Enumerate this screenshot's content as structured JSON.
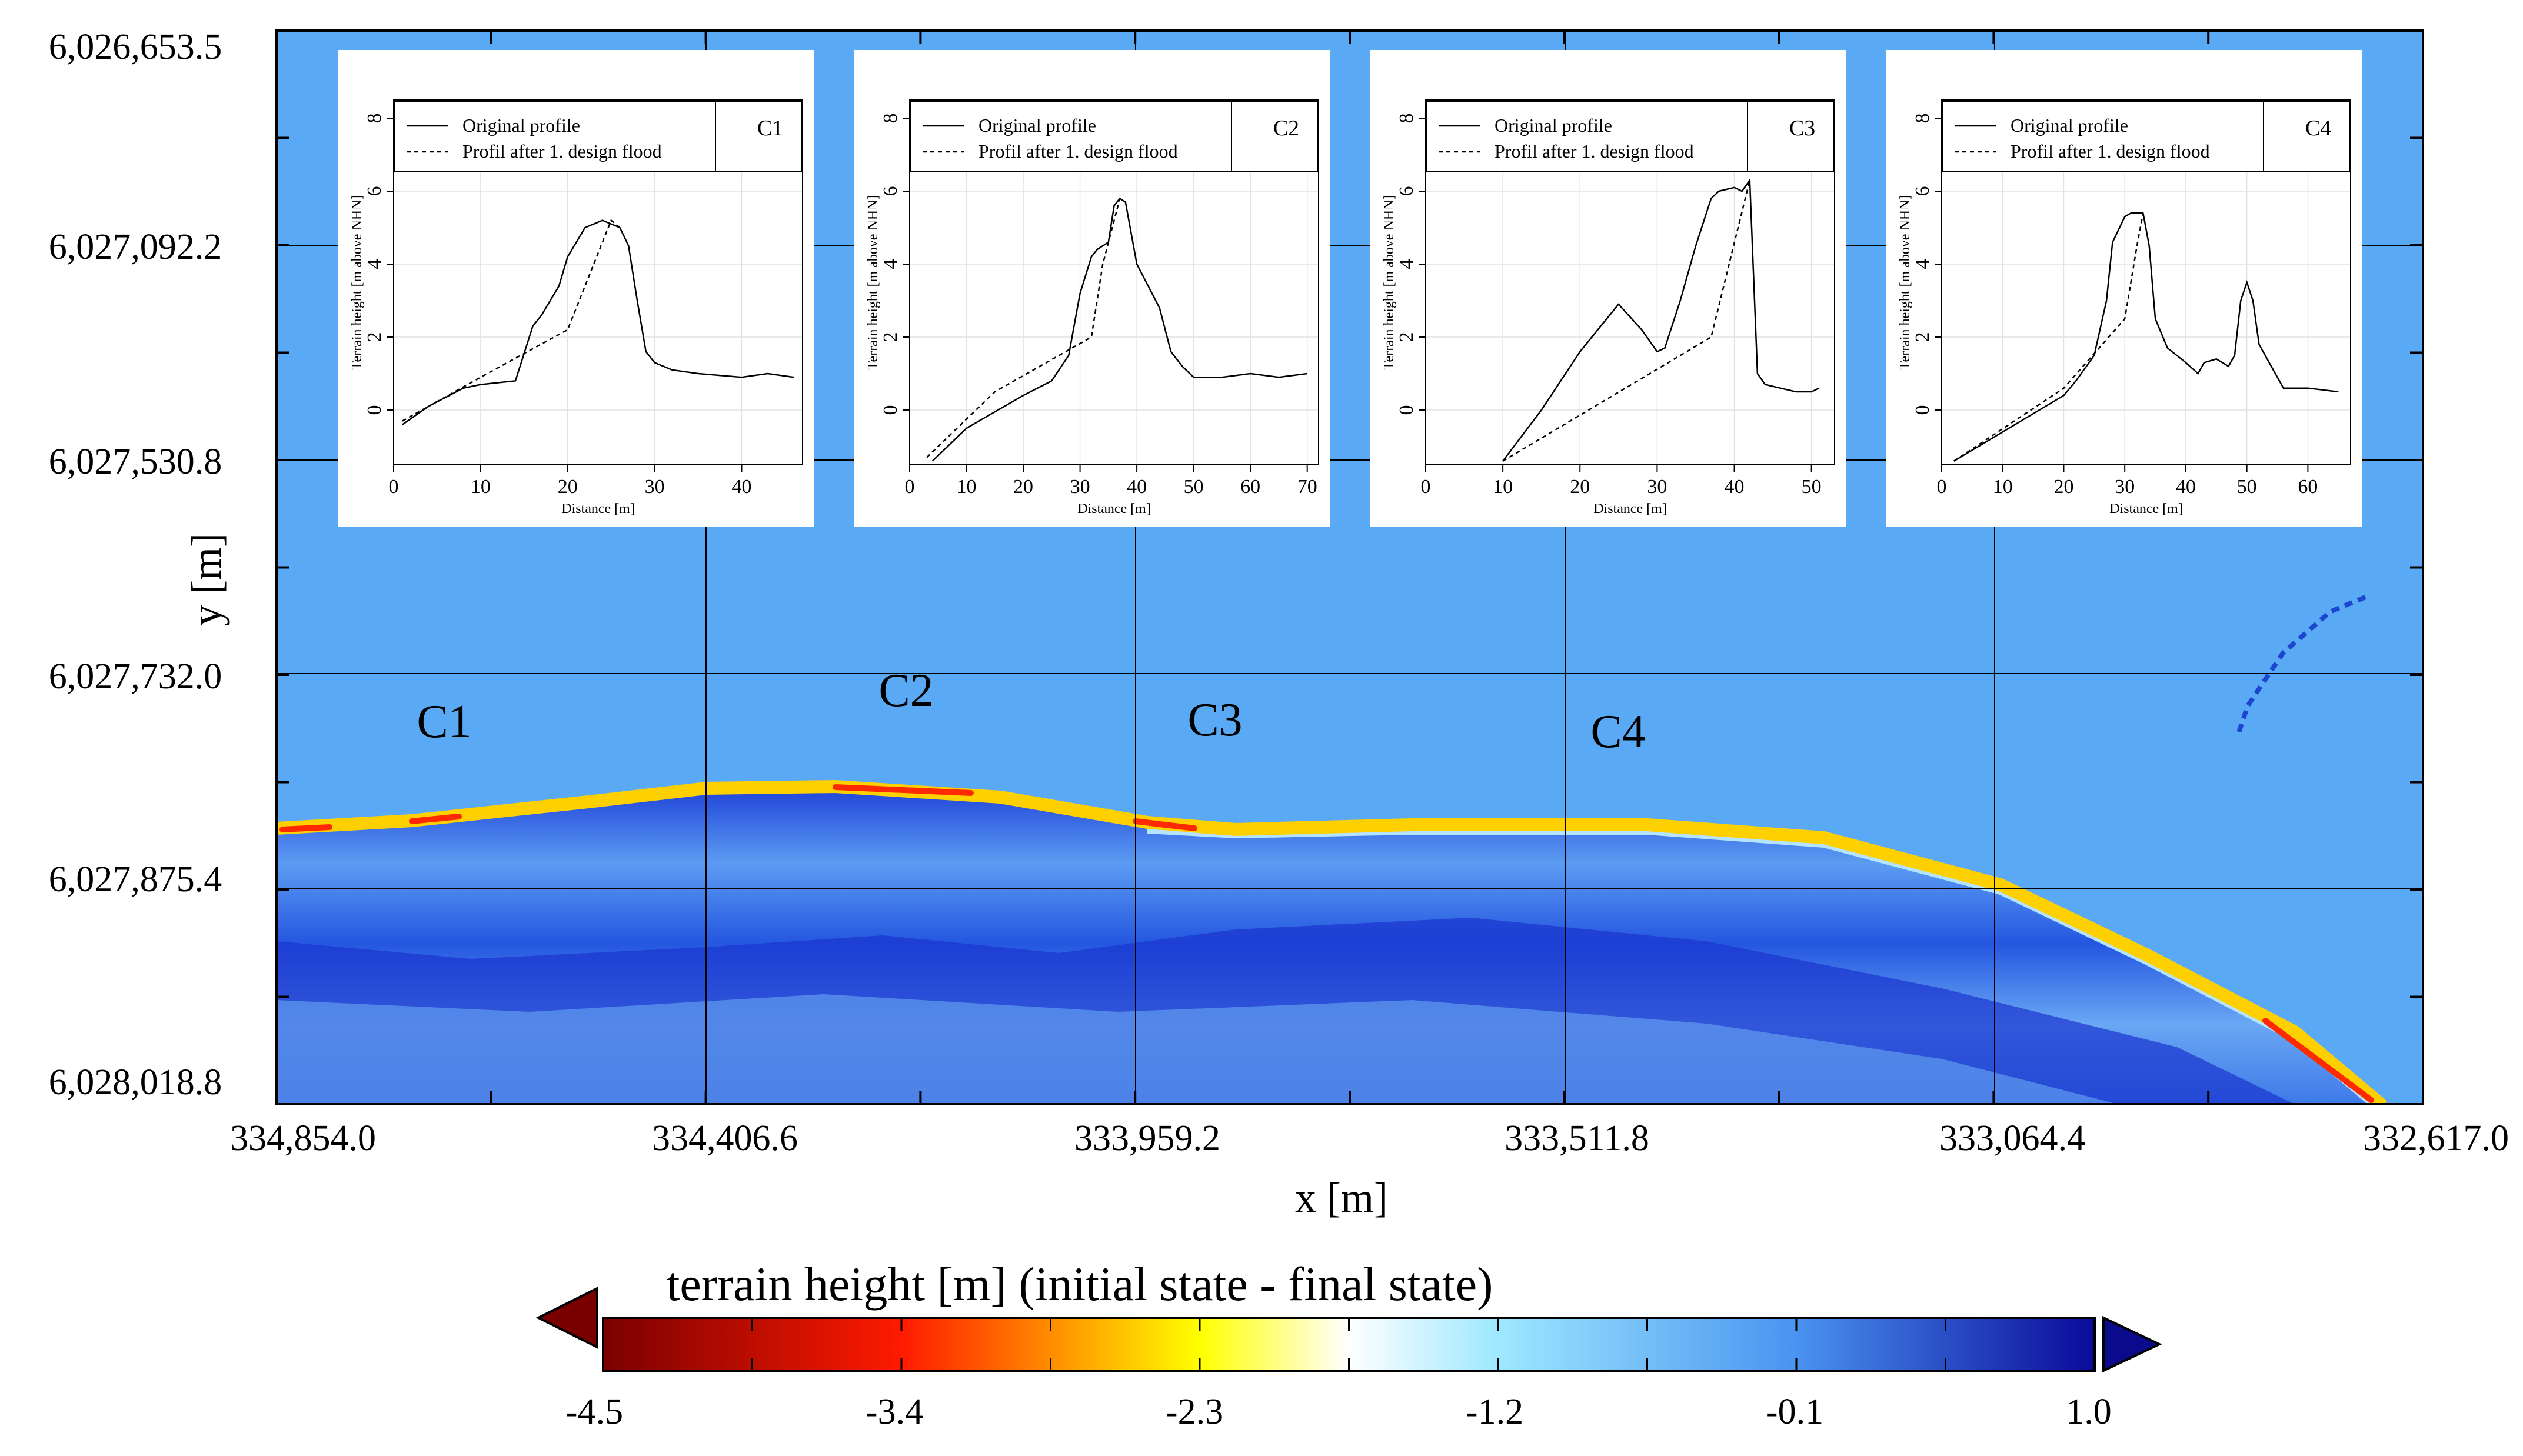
{
  "colors": {
    "background": "#5aa9f4",
    "deep_blue": "#0a23c8",
    "mid_blue": "#2e6ee6",
    "light_blue": "#8fc4f8",
    "cyan": "#c4ecff",
    "yellow": "#ffff00",
    "orange": "#ff8c00",
    "red": "#ff1a00",
    "dark_red": "#7a0000",
    "navy": "#0a0a8c"
  },
  "chart_data": [
    {
      "type": "heatmap",
      "title": "",
      "xlabel": "x [m]",
      "ylabel": "y [m]",
      "x_ticks": [
        "334,854.0",
        "334,406.6",
        "333,959.2",
        "333,511.8",
        "333,064.4",
        "332,617.0"
      ],
      "y_ticks": [
        "6,026,653.5",
        "6,027,092.2",
        "6,027,530.8",
        "6,027,732.0",
        "6,027,875.4",
        "6,028,018.8"
      ],
      "grid": true,
      "colorbar": {
        "title": "terrain height [m] (initial state - final state)",
        "ticks": [
          "-4.5",
          "-3.4",
          "-2.3",
          "-1.2",
          "-0.1",
          "1.0"
        ],
        "range": [
          -4.5,
          1.0
        ],
        "extend": "both"
      },
      "annotations": [
        "C1",
        "C2",
        "C3",
        "C4"
      ]
    },
    {
      "type": "line",
      "panel": "C1",
      "xlabel": "Distance [m]",
      "ylabel": "Terrain height [m above NHN]",
      "xticks": [
        "0",
        "10",
        "20",
        "30",
        "40"
      ],
      "yticks": [
        "0",
        "2",
        "4",
        "6",
        "8"
      ],
      "xlim": [
        0,
        47
      ],
      "ylim": [
        -1.5,
        8.5
      ],
      "legend": [
        "Original profile",
        "Profil after 1. design flood"
      ],
      "series": [
        {
          "name": "Original profile",
          "x": [
            1,
            4,
            8,
            10,
            14,
            16,
            17,
            19,
            20,
            21,
            22,
            24,
            26,
            27,
            28,
            29,
            30,
            32,
            35,
            40,
            43,
            46
          ],
          "y": [
            -0.4,
            0.1,
            0.6,
            0.7,
            0.8,
            2.3,
            2.6,
            3.4,
            4.2,
            4.6,
            5.0,
            5.2,
            5.0,
            4.5,
            3.0,
            1.6,
            1.3,
            1.1,
            1.0,
            0.9,
            1.0,
            0.9
          ]
        },
        {
          "name": "Profil after 1. design flood",
          "x": [
            1,
            10,
            20,
            21,
            25,
            26
          ],
          "y": [
            -0.3,
            0.9,
            2.2,
            2.8,
            5.2,
            5.0
          ]
        }
      ]
    },
    {
      "type": "line",
      "panel": "C2",
      "xlabel": "Distance [m]",
      "ylabel": "Terrain height [m above NHN]",
      "xticks": [
        "0",
        "10",
        "20",
        "30",
        "40",
        "50",
        "60",
        "70"
      ],
      "yticks": [
        "0",
        "2",
        "4",
        "6",
        "8"
      ],
      "xlim": [
        0,
        72
      ],
      "ylim": [
        -1.5,
        8.5
      ],
      "legend": [
        "Original profile",
        "Profil after 1. design flood"
      ],
      "series": [
        {
          "name": "Original profile",
          "x": [
            4,
            10,
            20,
            25,
            28,
            30,
            32,
            33,
            35,
            36,
            37,
            38,
            40,
            42,
            44,
            46,
            48,
            50,
            55,
            60,
            65,
            70
          ],
          "y": [
            -1.4,
            -0.5,
            0.4,
            0.8,
            1.5,
            3.2,
            4.2,
            4.4,
            4.6,
            5.6,
            5.8,
            5.7,
            4.0,
            3.4,
            2.8,
            1.6,
            1.2,
            0.9,
            0.9,
            1.0,
            0.9,
            1.0
          ]
        },
        {
          "name": "Profil after 1. design flood",
          "x": [
            3,
            15,
            32,
            34,
            37
          ],
          "y": [
            -1.3,
            0.5,
            2.0,
            4.0,
            5.8
          ]
        }
      ]
    },
    {
      "type": "line",
      "panel": "C3",
      "xlabel": "Distance [m]",
      "ylabel": "Terrain height [m above NHN]",
      "xticks": [
        "0",
        "10",
        "20",
        "30",
        "40",
        "50"
      ],
      "yticks": [
        "0",
        "2",
        "4",
        "6",
        "8"
      ],
      "xlim": [
        0,
        53
      ],
      "ylim": [
        -1.5,
        8.5
      ],
      "legend": [
        "Original profile",
        "Profil after 1. design flood"
      ],
      "series": [
        {
          "name": "Original profile",
          "x": [
            10,
            15,
            20,
            25,
            28,
            30,
            31,
            33,
            35,
            37,
            38,
            40,
            41,
            42,
            43,
            44,
            46,
            48,
            50,
            51
          ],
          "y": [
            -1.4,
            0.0,
            1.6,
            2.9,
            2.2,
            1.6,
            1.7,
            3.0,
            4.5,
            5.8,
            6.0,
            6.1,
            6.0,
            6.3,
            1.0,
            0.7,
            0.6,
            0.5,
            0.5,
            0.6
          ]
        },
        {
          "name": "Profil after 1. design flood",
          "x": [
            10,
            37,
            42
          ],
          "y": [
            -1.4,
            2.0,
            6.3
          ]
        }
      ]
    },
    {
      "type": "line",
      "panel": "C4",
      "xlabel": "Distance [m]",
      "ylabel": "Terrain height [m above NHN]",
      "xticks": [
        "0",
        "10",
        "20",
        "30",
        "40",
        "50",
        "60"
      ],
      "yticks": [
        "0",
        "2",
        "4",
        "6",
        "8"
      ],
      "xlim": [
        0,
        67
      ],
      "ylim": [
        -1.5,
        8.5
      ],
      "legend": [
        "Original profile",
        "Profil after 1. design flood"
      ],
      "series": [
        {
          "name": "Original profile",
          "x": [
            2,
            10,
            20,
            22,
            25,
            27,
            28,
            30,
            31,
            33,
            34,
            35,
            37,
            40,
            42,
            43,
            45,
            47,
            48,
            49,
            50,
            51,
            52,
            54,
            56,
            60,
            65
          ],
          "y": [
            -1.4,
            -0.6,
            0.4,
            0.8,
            1.5,
            3.0,
            4.6,
            5.3,
            5.4,
            5.4,
            4.5,
            2.5,
            1.7,
            1.3,
            1.0,
            1.3,
            1.4,
            1.2,
            1.5,
            3.0,
            3.5,
            3.0,
            1.8,
            1.2,
            0.6,
            0.6,
            0.5
          ]
        },
        {
          "name": "Profil after 1. design flood",
          "x": [
            2,
            20,
            30,
            32,
            33
          ],
          "y": [
            -1.4,
            0.6,
            2.5,
            4.5,
            5.4
          ]
        }
      ]
    }
  ]
}
